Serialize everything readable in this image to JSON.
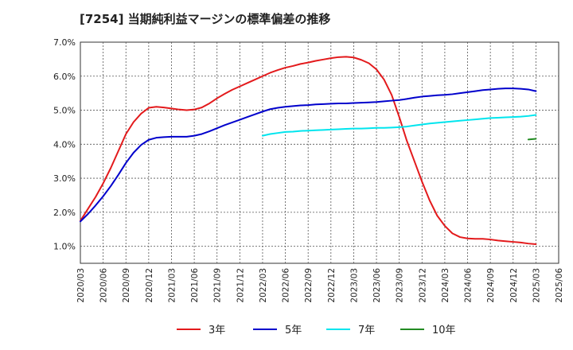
{
  "chart_data": {
    "type": "line",
    "title": "[7254]  当期純利益マージンの標準偏差の推移",
    "xlabel": "",
    "ylabel": "",
    "ylim": [
      0.5,
      7.0
    ],
    "y_ticks": [
      "1.0%",
      "2.0%",
      "3.0%",
      "4.0%",
      "5.0%",
      "6.0%",
      "7.0%"
    ],
    "y_tick_values": [
      1.0,
      2.0,
      3.0,
      4.0,
      5.0,
      6.0,
      7.0
    ],
    "x_tick_labels": [
      "2020/03",
      "2020/06",
      "2020/09",
      "2020/12",
      "2021/03",
      "2021/06",
      "2021/09",
      "2021/12",
      "2022/03",
      "2022/06",
      "2022/09",
      "2022/12",
      "2023/03",
      "2023/06",
      "2023/09",
      "2023/12",
      "2024/03",
      "2024/06",
      "2024/09",
      "2024/12",
      "2025/03",
      "2025/06"
    ],
    "grid": true,
    "legend_position": "bottom",
    "series": [
      {
        "name": "3年",
        "color": "#e31a1c",
        "points": [
          [
            "2020/03",
            1.75
          ],
          [
            "2020/04",
            2.1
          ],
          [
            "2020/05",
            2.45
          ],
          [
            "2020/06",
            2.85
          ],
          [
            "2020/07",
            3.3
          ],
          [
            "2020/08",
            3.8
          ],
          [
            "2020/09",
            4.3
          ],
          [
            "2020/10",
            4.65
          ],
          [
            "2020/11",
            4.9
          ],
          [
            "2020/12",
            5.07
          ],
          [
            "2021/01",
            5.1
          ],
          [
            "2021/02",
            5.08
          ],
          [
            "2021/03",
            5.05
          ],
          [
            "2021/04",
            5.02
          ],
          [
            "2021/05",
            5.0
          ],
          [
            "2021/06",
            5.02
          ],
          [
            "2021/07",
            5.08
          ],
          [
            "2021/08",
            5.2
          ],
          [
            "2021/09",
            5.35
          ],
          [
            "2021/10",
            5.48
          ],
          [
            "2021/11",
            5.6
          ],
          [
            "2021/12",
            5.7
          ],
          [
            "2022/01",
            5.8
          ],
          [
            "2022/02",
            5.9
          ],
          [
            "2022/03",
            6.0
          ],
          [
            "2022/04",
            6.1
          ],
          [
            "2022/05",
            6.18
          ],
          [
            "2022/06",
            6.25
          ],
          [
            "2022/07",
            6.3
          ],
          [
            "2022/08",
            6.36
          ],
          [
            "2022/09",
            6.4
          ],
          [
            "2022/10",
            6.45
          ],
          [
            "2022/11",
            6.49
          ],
          [
            "2022/12",
            6.53
          ],
          [
            "2023/01",
            6.56
          ],
          [
            "2023/02",
            6.57
          ],
          [
            "2023/03",
            6.55
          ],
          [
            "2023/04",
            6.48
          ],
          [
            "2023/05",
            6.38
          ],
          [
            "2023/06",
            6.2
          ],
          [
            "2023/07",
            5.9
          ],
          [
            "2023/08",
            5.45
          ],
          [
            "2023/09",
            4.8
          ],
          [
            "2023/10",
            4.1
          ],
          [
            "2023/11",
            3.5
          ],
          [
            "2023/12",
            2.9
          ],
          [
            "2024/01",
            2.35
          ],
          [
            "2024/02",
            1.9
          ],
          [
            "2024/03",
            1.6
          ],
          [
            "2024/04",
            1.38
          ],
          [
            "2024/05",
            1.27
          ],
          [
            "2024/06",
            1.23
          ],
          [
            "2024/07",
            1.22
          ],
          [
            "2024/08",
            1.22
          ],
          [
            "2024/09",
            1.2
          ],
          [
            "2024/10",
            1.17
          ],
          [
            "2024/11",
            1.15
          ],
          [
            "2024/12",
            1.13
          ],
          [
            "2025/01",
            1.11
          ],
          [
            "2025/02",
            1.08
          ],
          [
            "2025/03",
            1.06
          ]
        ]
      },
      {
        "name": "5年",
        "color": "#0000cc",
        "points": [
          [
            "2020/03",
            1.73
          ],
          [
            "2020/04",
            1.95
          ],
          [
            "2020/05",
            2.2
          ],
          [
            "2020/06",
            2.47
          ],
          [
            "2020/07",
            2.77
          ],
          [
            "2020/08",
            3.1
          ],
          [
            "2020/09",
            3.45
          ],
          [
            "2020/10",
            3.75
          ],
          [
            "2020/11",
            3.98
          ],
          [
            "2020/12",
            4.13
          ],
          [
            "2021/01",
            4.19
          ],
          [
            "2021/02",
            4.21
          ],
          [
            "2021/03",
            4.22
          ],
          [
            "2021/04",
            4.22
          ],
          [
            "2021/05",
            4.22
          ],
          [
            "2021/06",
            4.25
          ],
          [
            "2021/07",
            4.3
          ],
          [
            "2021/08",
            4.38
          ],
          [
            "2021/09",
            4.47
          ],
          [
            "2021/10",
            4.56
          ],
          [
            "2021/11",
            4.64
          ],
          [
            "2021/12",
            4.72
          ],
          [
            "2022/01",
            4.8
          ],
          [
            "2022/02",
            4.88
          ],
          [
            "2022/03",
            4.96
          ],
          [
            "2022/04",
            5.03
          ],
          [
            "2022/05",
            5.07
          ],
          [
            "2022/06",
            5.1
          ],
          [
            "2022/07",
            5.12
          ],
          [
            "2022/08",
            5.14
          ],
          [
            "2022/09",
            5.15
          ],
          [
            "2022/10",
            5.17
          ],
          [
            "2022/11",
            5.18
          ],
          [
            "2022/12",
            5.19
          ],
          [
            "2023/01",
            5.2
          ],
          [
            "2023/02",
            5.2
          ],
          [
            "2023/03",
            5.21
          ],
          [
            "2023/04",
            5.22
          ],
          [
            "2023/05",
            5.23
          ],
          [
            "2023/06",
            5.24
          ],
          [
            "2023/07",
            5.26
          ],
          [
            "2023/08",
            5.28
          ],
          [
            "2023/09",
            5.3
          ],
          [
            "2023/10",
            5.33
          ],
          [
            "2023/11",
            5.37
          ],
          [
            "2023/12",
            5.4
          ],
          [
            "2024/01",
            5.42
          ],
          [
            "2024/02",
            5.44
          ],
          [
            "2024/03",
            5.45
          ],
          [
            "2024/04",
            5.47
          ],
          [
            "2024/05",
            5.5
          ],
          [
            "2024/06",
            5.53
          ],
          [
            "2024/07",
            5.56
          ],
          [
            "2024/08",
            5.59
          ],
          [
            "2024/09",
            5.61
          ],
          [
            "2024/10",
            5.63
          ],
          [
            "2024/11",
            5.64
          ],
          [
            "2024/12",
            5.64
          ],
          [
            "2025/01",
            5.63
          ],
          [
            "2025/02",
            5.61
          ],
          [
            "2025/03",
            5.56
          ]
        ]
      },
      {
        "name": "7年",
        "color": "#00e5ee",
        "points": [
          [
            "2022/03",
            4.25
          ],
          [
            "2022/04",
            4.3
          ],
          [
            "2022/05",
            4.33
          ],
          [
            "2022/06",
            4.36
          ],
          [
            "2022/07",
            4.37
          ],
          [
            "2022/08",
            4.39
          ],
          [
            "2022/09",
            4.4
          ],
          [
            "2022/10",
            4.41
          ],
          [
            "2022/11",
            4.42
          ],
          [
            "2022/12",
            4.43
          ],
          [
            "2023/01",
            4.44
          ],
          [
            "2023/02",
            4.45
          ],
          [
            "2023/03",
            4.46
          ],
          [
            "2023/04",
            4.46
          ],
          [
            "2023/05",
            4.47
          ],
          [
            "2023/06",
            4.48
          ],
          [
            "2023/07",
            4.48
          ],
          [
            "2023/08",
            4.49
          ],
          [
            "2023/09",
            4.5
          ],
          [
            "2023/10",
            4.52
          ],
          [
            "2023/11",
            4.55
          ],
          [
            "2023/12",
            4.58
          ],
          [
            "2024/01",
            4.61
          ],
          [
            "2024/02",
            4.63
          ],
          [
            "2024/03",
            4.65
          ],
          [
            "2024/04",
            4.67
          ],
          [
            "2024/05",
            4.69
          ],
          [
            "2024/06",
            4.71
          ],
          [
            "2024/07",
            4.73
          ],
          [
            "2024/08",
            4.75
          ],
          [
            "2024/09",
            4.77
          ],
          [
            "2024/10",
            4.78
          ],
          [
            "2024/11",
            4.79
          ],
          [
            "2024/12",
            4.8
          ],
          [
            "2025/01",
            4.81
          ],
          [
            "2025/02",
            4.83
          ],
          [
            "2025/03",
            4.86
          ]
        ]
      },
      {
        "name": "10年",
        "color": "#228b22",
        "points": [
          [
            "2025/02",
            4.14
          ],
          [
            "2025/03",
            4.16
          ]
        ]
      }
    ]
  }
}
